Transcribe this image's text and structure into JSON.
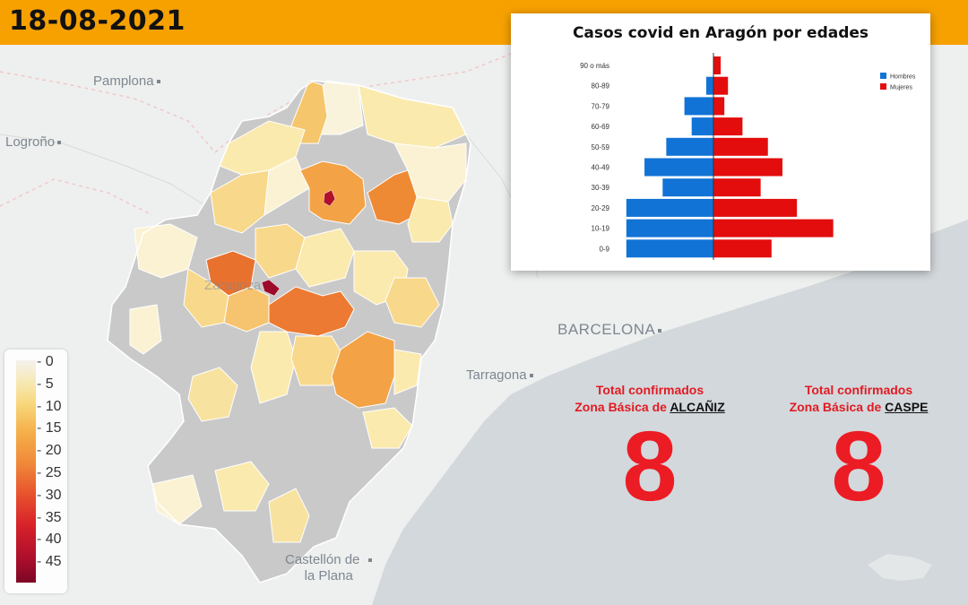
{
  "date": "18-08-2021",
  "colors": {
    "bar": "#f7a100",
    "hombres": "#1273d6",
    "mujeres": "#e30d0d",
    "accent": "#ec1c24"
  },
  "map": {
    "cities": [
      "Pamplona",
      "Logroño",
      "Zaragoza",
      "BARCELONA",
      "Tarragona",
      "Castellón de",
      "la Plana"
    ]
  },
  "legend": {
    "ticks": [
      "0",
      "5",
      "10",
      "15",
      "20",
      "25",
      "30",
      "35",
      "40",
      "45"
    ]
  },
  "chart_data": {
    "type": "bar",
    "orientation": "horizontal-pyramid",
    "title": "Casos covid en Aragón por edades",
    "categories": [
      "90 o más",
      "80-89",
      "70-79",
      "60-69",
      "50-59",
      "40-49",
      "30-39",
      "20-29",
      "10-19",
      "0-9"
    ],
    "series": [
      {
        "name": "Hombres",
        "values": [
          0,
          2,
          8,
          6,
          13,
          19,
          14,
          24,
          24,
          24
        ]
      },
      {
        "name": "Mujeres",
        "values": [
          2,
          4,
          3,
          8,
          15,
          19,
          13,
          23,
          33,
          16
        ]
      }
    ],
    "legend_position": "top-right",
    "grid": false
  },
  "stats": [
    {
      "label": "Total confirmados",
      "prefix": "Zona Básica de",
      "zone": "ALCAÑIZ",
      "value": "8"
    },
    {
      "label": "Total confirmados",
      "prefix": "Zona Básica de",
      "zone": "CASPE",
      "value": "8"
    }
  ]
}
